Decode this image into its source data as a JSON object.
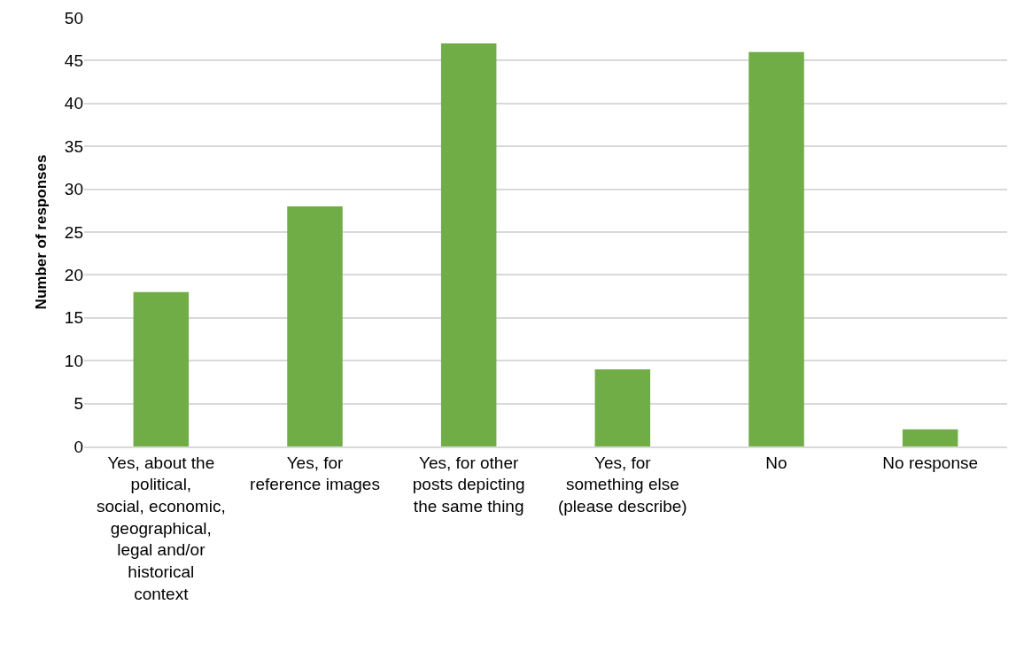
{
  "chart_data": {
    "type": "bar",
    "ylabel": "Number of responses",
    "categories": [
      "Yes, about the political, social, economic, geographical, legal and/or historical context",
      "Yes, for reference images",
      "Yes, for other posts depicting the same thing",
      "Yes, for something else (please describe)",
      "No",
      "No response"
    ],
    "values": [
      18,
      28,
      47,
      9,
      46,
      2
    ],
    "color": "#70ad47",
    "ylim": [
      0,
      50
    ],
    "yticks": [
      0,
      5,
      10,
      15,
      20,
      25,
      30,
      35,
      40,
      45,
      50
    ],
    "grid": "y"
  }
}
